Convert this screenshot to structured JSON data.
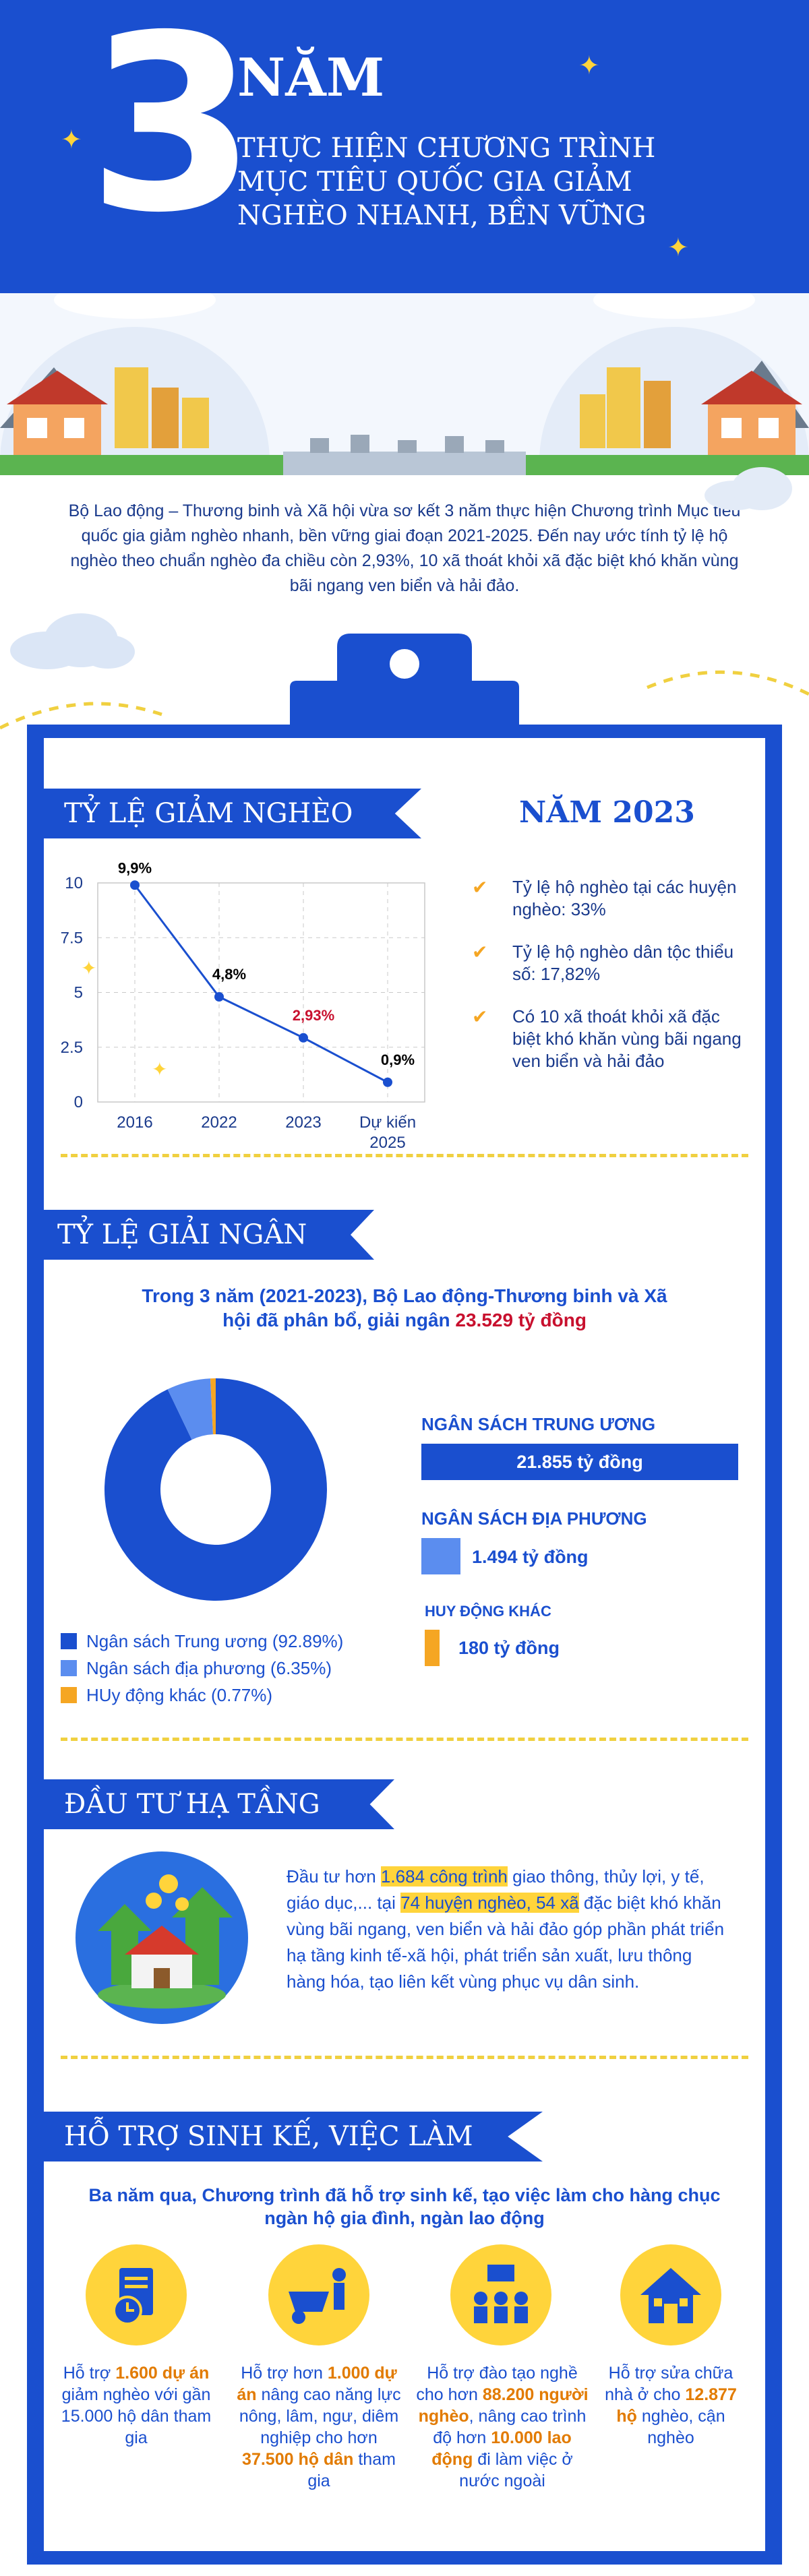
{
  "header": {
    "number": "3",
    "year_word": "NĂM",
    "subtitle": "THỰC HIỆN CHƯƠNG TRÌNH MỤC TIÊU QUỐC GIA GIẢM NGHÈO NHANH, BỀN VỮNG"
  },
  "intro": "Bộ Lao động – Thương binh và Xã hội vừa sơ kết 3 năm thực hiện Chương trình Mục tiêu quốc gia giảm nghèo nhanh, bền vững giai đoạn 2021-2025. Đến nay ước tính tỷ lệ hộ nghèo theo chuẩn nghèo đa chiều còn 2,93%, 10 xã thoát khỏi xã đặc biệt khó khăn vùng bãi ngang ven biển và hải đảo.",
  "section1": {
    "title": "TỶ LỆ GIẢM NGHÈO",
    "year_title": "NĂM 2023",
    "bullets": [
      "Tỷ lệ hộ nghèo tại các huyện nghèo: 33%",
      "Tỷ lệ hộ nghèo dân tộc thiểu số: 17,82%",
      "Có 10 xã thoát khỏi xã đặc biệt khó khăn vùng bãi ngang ven biển và hải đảo"
    ]
  },
  "chart_data": [
    {
      "type": "line",
      "categories": [
        "2016",
        "2022",
        "2023",
        "Dự kiến 2025"
      ],
      "values": [
        9.9,
        4.8,
        2.93,
        0.9
      ],
      "data_labels": [
        "9,9%",
        "4,8%",
        "2,93%",
        "0,9%"
      ],
      "highlight_label_color": "#c8102e",
      "ylim": [
        0,
        10
      ],
      "yticks": [
        "0",
        "2.5",
        "5",
        "7.5",
        "10"
      ],
      "grid": true,
      "line_color": "#1a4fcf"
    },
    {
      "type": "pie",
      "donut": true,
      "series": [
        {
          "name": "Ngân sách Trung ương (92.89%)",
          "value": 92.89,
          "color": "#1a4fcf"
        },
        {
          "name": "Ngân sách địa phương (6.35%)",
          "value": 6.35,
          "color": "#5b8def"
        },
        {
          "name": "HUy động khác (0.77%)",
          "value": 0.77,
          "color": "#f5a623"
        }
      ],
      "legend_position": "bottom-left"
    }
  ],
  "section2": {
    "title": "TỶ LỆ GIẢI NGÂN",
    "summary_a": "Trong 3 năm (2021-2023), Bộ Lao động-Thương binh và Xã hội đã phân bổ, giải ngân ",
    "summary_b": "23.529 tỷ đồng",
    "bars": [
      {
        "label": "NGÂN SÁCH TRUNG ƯƠNG",
        "value_text": "21.855 tỷ đồng",
        "value": 21855,
        "color": "#1a4fcf"
      },
      {
        "label": "NGÂN SÁCH ĐỊA PHƯƠNG",
        "value_text": "1.494 tỷ đồng",
        "value": 1494,
        "color": "#5b8def"
      },
      {
        "label": "HUY ĐỘNG KHÁC",
        "value_text": "180 tỷ đồng",
        "value": 180,
        "color": "#f5a623"
      }
    ]
  },
  "section3": {
    "title": "ĐẦU TƯ HẠ TẦNG",
    "p1": "Đầu tư hơn ",
    "h1": "1.684 công trình",
    "p2": " giao thông, thủy lợi, y tế, giáo dục,... tại ",
    "h2": "74 huyện nghèo, 54 xã",
    "p3": " đặc biệt khó khăn vùng bãi ngang, ven biển và hải đảo góp phần phát triển hạ tầng kinh tế-xã hội, phát triển sản xuất, lưu thông hàng hóa, tạo liên kết vùng phục vụ dân sinh."
  },
  "section4": {
    "title": "HỖ TRỢ SINH KẾ, VIỆC LÀM",
    "intro": "Ba năm qua, Chương trình đã hỗ trợ sinh kế, tạo việc làm cho hàng chục ngàn hộ gia đình, ngàn lao động",
    "items": [
      {
        "icon": "document-clock-icon",
        "a": "Hỗ trợ ",
        "b": "1.600 dự án",
        "c": " giảm nghèo với gần 15.000 hộ dân tham gia"
      },
      {
        "icon": "wheelbarrow-worker-icon",
        "a": "Hỗ trợ hơn ",
        "b": "1.000 dự án",
        "c": " nâng cao năng lực nông, lâm, ngư, diêm nghiệp cho hơn ",
        "d": "37.500 hộ dân",
        "e": " tham gia"
      },
      {
        "icon": "training-group-icon",
        "a": "Hỗ trợ đào tạo nghề cho hơn ",
        "b": "88.200 người nghèo",
        "c": ", nâng cao trình độ hơn ",
        "d": "10.000 lao động",
        "e": " đi làm việc ở nước ngoài"
      },
      {
        "icon": "house-icon",
        "a": "Hỗ trợ sửa chữa nhà ở cho ",
        "b": "12.877 hộ",
        "c": " nghèo, cận nghèo"
      }
    ]
  }
}
